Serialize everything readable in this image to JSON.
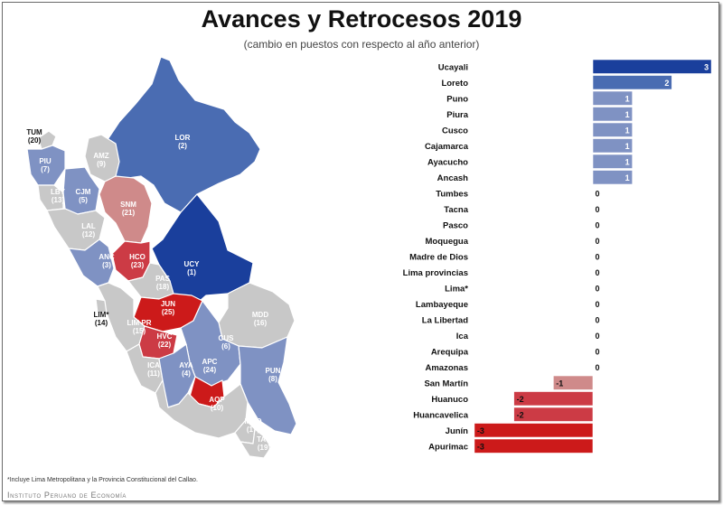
{
  "title": "Avances y Retrocesos 2019",
  "subtitle": "(cambio en puestos con respecto al año anterior)",
  "footnote": "*Incluye Lima Metropolitana y la Provincia Constitucional del Callao.",
  "brand": "Instituto Peruano de Economía",
  "colors": {
    "blue_dark": "#1a3f9c",
    "blue_mid": "#4a6cb2",
    "blue_light": "#7f92c3",
    "zero_gray": "#c8c8c8",
    "red_light": "#cf8a8a",
    "red_mid": "#cc3b45",
    "red_dark": "#cc1a1a"
  },
  "map_regions": [
    {
      "code": "LOR",
      "rank": "(2)",
      "change": 2
    },
    {
      "code": "TUM",
      "rank": "(20)",
      "change": 0
    },
    {
      "code": "PIU",
      "rank": "(7)",
      "change": 1
    },
    {
      "code": "AMZ",
      "rank": "(9)",
      "change": 0
    },
    {
      "code": "LBY",
      "rank": "(13)",
      "change": 0
    },
    {
      "code": "CJM",
      "rank": "(5)",
      "change": 1
    },
    {
      "code": "SNM",
      "rank": "(21)",
      "change": -1
    },
    {
      "code": "LAL",
      "rank": "(12)",
      "change": 0
    },
    {
      "code": "ANC",
      "rank": "(3)",
      "change": 1
    },
    {
      "code": "HCO",
      "rank": "(23)",
      "change": -2
    },
    {
      "code": "UCY",
      "rank": "(1)",
      "change": 3
    },
    {
      "code": "PAS",
      "rank": "(18)",
      "change": 0
    },
    {
      "code": "LIM*",
      "rank": "(14)",
      "change": 0
    },
    {
      "code": "JUN",
      "rank": "(25)",
      "change": -3
    },
    {
      "code": "LIM PR",
      "rank": "(15)",
      "change": 0
    },
    {
      "code": "MDD",
      "rank": "(16)",
      "change": 0
    },
    {
      "code": "HVC",
      "rank": "(22)",
      "change": -2
    },
    {
      "code": "CUS",
      "rank": "(6)",
      "change": 1
    },
    {
      "code": "ICA",
      "rank": "(11)",
      "change": 0
    },
    {
      "code": "AYA",
      "rank": "(4)",
      "change": 1
    },
    {
      "code": "APC",
      "rank": "(24)",
      "change": -3
    },
    {
      "code": "PUN",
      "rank": "(8)",
      "change": 1
    },
    {
      "code": "AQP",
      "rank": "(10)",
      "change": 0
    },
    {
      "code": "MOQ",
      "rank": "(17)",
      "change": 0
    },
    {
      "code": "TAC",
      "rank": "(19)",
      "change": 0
    }
  ],
  "chart_data": {
    "type": "bar",
    "orientation": "horizontal",
    "title": "Avances y Retrocesos 2019",
    "subtitle": "(cambio en puestos con respecto al año anterior)",
    "categories": [
      "Ucayali",
      "Loreto",
      "Puno",
      "Piura",
      "Cusco",
      "Cajamarca",
      "Ayacucho",
      "Ancash",
      "Tumbes",
      "Tacna",
      "Pasco",
      "Moquegua",
      "Madre de Dios",
      "Lima provincias",
      "Lima*",
      "Lambayeque",
      "La Libertad",
      "Ica",
      "Arequipa",
      "Amazonas",
      "San Martín",
      "Huanuco",
      "Huancavelica",
      "Junín",
      "Apurimac"
    ],
    "values": [
      3,
      2,
      1,
      1,
      1,
      1,
      1,
      1,
      0,
      0,
      0,
      0,
      0,
      0,
      0,
      0,
      0,
      0,
      0,
      0,
      -1,
      -2,
      -2,
      -3,
      -3
    ],
    "labels": [
      "3",
      "2",
      "1",
      "1",
      "1",
      "1",
      "1",
      "1",
      "0",
      "0",
      "0",
      "0",
      "0",
      "0",
      "0",
      "0",
      "0",
      "0",
      "0",
      "0",
      "-1",
      "-2",
      "-2",
      "-3",
      "-3"
    ],
    "xlim": [
      -3,
      3
    ],
    "grid": false,
    "legend": "none"
  }
}
